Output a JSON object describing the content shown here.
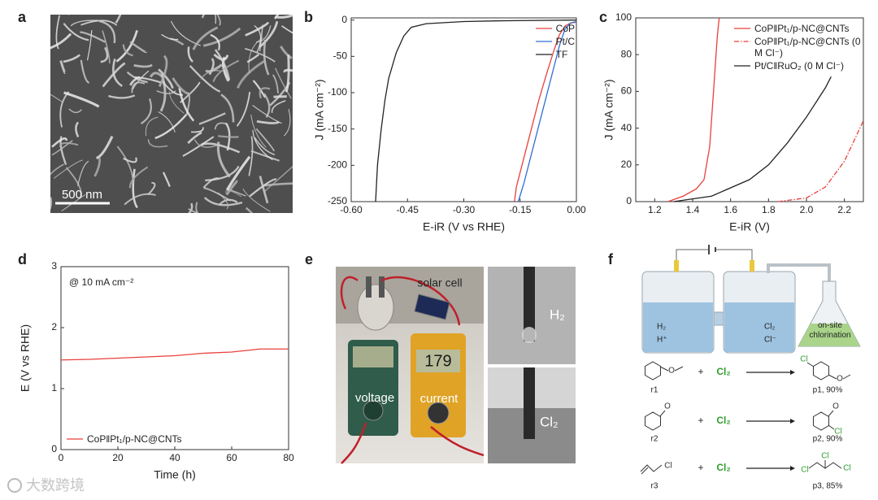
{
  "panels": {
    "a": {
      "letter": "a",
      "scale_bar": "500 nm"
    },
    "e": {
      "letter": "e",
      "labels": [
        "solar cell",
        "voltage",
        "current",
        "H₂",
        "Cl₂"
      ],
      "display": "179"
    },
    "f": {
      "letter": "f",
      "cell_labels": [
        "H₂",
        "H⁺",
        "Cl₂",
        "Cl⁻"
      ],
      "flask_label": "on-site chlorination",
      "reactions": [
        {
          "reactant": "r1",
          "reactant_atoms": [
            "O"
          ],
          "plus": "+",
          "reagent": "Cl₂",
          "product": "p1, 90%",
          "product_atoms": [
            "Cl",
            "O"
          ]
        },
        {
          "reactant": "r2",
          "reactant_atoms": [
            "O"
          ],
          "plus": "+",
          "reagent": "Cl₂",
          "product": "p2, 90%",
          "product_atoms": [
            "O",
            "Cl"
          ]
        },
        {
          "reactant": "r3",
          "reactant_atoms": [
            "Cl"
          ],
          "plus": "+",
          "reagent": "Cl₂",
          "product": "p3, 85%",
          "product_atoms": [
            "Cl",
            "Cl",
            "Cl"
          ]
        }
      ]
    }
  },
  "watermark": "大数跨境",
  "chart_data": [
    {
      "type": "line",
      "panel": "b",
      "x_label": "E-iR (V vs RHE)",
      "y_label": "J (mA cm⁻²)",
      "xlim": [
        -0.6,
        0
      ],
      "xticks": [
        {
          "value": -0.6,
          "label": "-0.60"
        },
        {
          "value": -0.45,
          "label": "-0.45"
        },
        {
          "value": -0.3,
          "label": "-0.30"
        },
        {
          "value": -0.15,
          "label": "-0.15"
        },
        {
          "value": 0,
          "label": "0.00"
        }
      ],
      "ylim": [
        -250,
        3
      ],
      "yticks": [
        -250,
        -200,
        -150,
        -100,
        -50,
        0
      ],
      "legend": "upper right",
      "series": [
        {
          "name": "CoP",
          "color": "#e8413c",
          "x": [
            -0.165,
            -0.16,
            -0.14,
            -0.12,
            -0.1,
            -0.08,
            -0.06,
            -0.045,
            -0.03,
            -0.015,
            0
          ],
          "values": [
            -250,
            -230,
            -190,
            -150,
            -110,
            -75,
            -42,
            -20,
            -8,
            -4,
            -3
          ]
        },
        {
          "name": "Pt/C",
          "color": "#2f6fd6",
          "x": [
            -0.155,
            -0.14,
            -0.12,
            -0.1,
            -0.08,
            -0.06,
            -0.045,
            -0.03,
            -0.015,
            0
          ],
          "values": [
            -250,
            -225,
            -185,
            -145,
            -105,
            -65,
            -35,
            -12,
            -4,
            -2
          ]
        },
        {
          "name": "TF",
          "color": "#222222",
          "x": [
            -0.535,
            -0.53,
            -0.52,
            -0.51,
            -0.5,
            -0.48,
            -0.46,
            -0.44,
            -0.4,
            -0.3,
            -0.2,
            0
          ],
          "values": [
            -250,
            -200,
            -150,
            -110,
            -80,
            -45,
            -22,
            -10,
            -5,
            -2,
            -1,
            0
          ]
        }
      ]
    },
    {
      "type": "line",
      "panel": "c",
      "x_label": "E-iR (V)",
      "y_label": "J (mA cm⁻²)",
      "xlim": [
        1.1,
        2.3
      ],
      "xticks": [
        1.2,
        1.4,
        1.6,
        1.8,
        {
          "value": 2,
          "label": "2.0"
        },
        2.2
      ],
      "ylim": [
        0,
        100
      ],
      "yticks": [
        0,
        20,
        40,
        60,
        80,
        100
      ],
      "legend": "upper right",
      "series": [
        {
          "name": "CoP‖Pt₁/p-NC@CNTs",
          "color": "#e8413c",
          "x": [
            1.27,
            1.35,
            1.42,
            1.46,
            1.49,
            1.51,
            1.53,
            1.54
          ],
          "values": [
            0,
            3,
            7,
            12,
            30,
            60,
            90,
            100
          ]
        },
        {
          "name": "CoP‖Pt₁/p-NC@CNTs (0 M Cl⁻)",
          "color": "#e8413c",
          "dash": "dashdot",
          "x": [
            1.85,
            2.0,
            2.1,
            2.2,
            2.3
          ],
          "values": [
            0,
            2,
            8,
            22,
            44
          ]
        },
        {
          "name": "Pt/C‖RuO₂ (0 M Cl⁻)",
          "color": "#222222",
          "x": [
            1.3,
            1.5,
            1.7,
            1.8,
            1.9,
            2.0,
            2.1,
            2.13
          ],
          "values": [
            0,
            3,
            12,
            20,
            32,
            46,
            62,
            68
          ]
        }
      ]
    },
    {
      "type": "line",
      "panel": "d",
      "x_label": "Time (h)",
      "y_label": "E (V vs RHE)",
      "annotation": "@ 10 mA cm⁻²",
      "xlim": [
        0,
        80
      ],
      "xticks": [
        0,
        20,
        40,
        60,
        80
      ],
      "ylim": [
        0,
        3
      ],
      "yticks": [
        0,
        1,
        2,
        3
      ],
      "legend": "lower left",
      "series": [
        {
          "name": "CoP‖Pt₁/p-NC@CNTs",
          "color": "#e8413c",
          "x": [
            0,
            10,
            20,
            30,
            40,
            50,
            60,
            70,
            80
          ],
          "values": [
            1.47,
            1.48,
            1.5,
            1.52,
            1.54,
            1.58,
            1.6,
            1.65,
            1.65
          ]
        }
      ]
    }
  ]
}
